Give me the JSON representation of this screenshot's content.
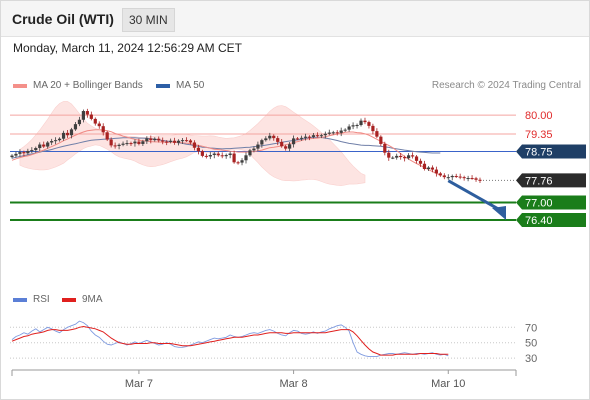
{
  "header": {
    "title": "Crude Oil (WTI)",
    "timeframe": "30 MIN"
  },
  "subheader": {
    "datetime": "Monday, March 11, 2024 12:56:29 AM CET"
  },
  "legend": {
    "main": [
      {
        "label": "MA 20 + Bollinger Bands",
        "color": "#f4908a"
      },
      {
        "label": "MA 50",
        "color": "#2d5fa6"
      }
    ],
    "rsi": [
      {
        "label": "RSI",
        "color": "#5b7fd6"
      },
      {
        "label": "9MA",
        "color": "#e0201e"
      }
    ]
  },
  "credit": "Research © 2024 Trading Central",
  "colors": {
    "resistance": "#f4a5a0",
    "support": "#1a7d1a",
    "current_line": "#3a63c9",
    "current_badge": "#1f3f66",
    "band_fill": "#fde0de",
    "arrow": "#2e5e9e",
    "candle_up": "#3f3f3f",
    "candle_down": "#a82222"
  },
  "chart_data": {
    "type": "candlestick",
    "xlim": [
      0,
      118
    ],
    "ylim": [
      75.85,
      80.45
    ],
    "x_ticks": [
      {
        "x": 32,
        "label": "Mar 7"
      },
      {
        "x": 71,
        "label": "Mar 8"
      },
      {
        "x": 110,
        "label": "Mar 10"
      }
    ],
    "levels": [
      {
        "value": "80.00",
        "kind": "resistance"
      },
      {
        "value": "79.35",
        "kind": "resistance"
      },
      {
        "value": "78.75",
        "kind": "current"
      },
      {
        "value": "77.76",
        "kind": "last"
      },
      {
        "value": "77.00",
        "kind": "support"
      },
      {
        "value": "76.40",
        "kind": "support"
      }
    ],
    "projection": {
      "from": {
        "x": 110,
        "y": 77.75
      },
      "to": {
        "x": 118,
        "y": 76.4
      }
    },
    "candle_close": [
      78.61,
      78.67,
      78.73,
      78.69,
      78.77,
      78.8,
      78.87,
      78.99,
      78.92,
      79.06,
      79.11,
      79.14,
      79.19,
      79.39,
      79.31,
      79.51,
      79.69,
      79.84,
      80.14,
      80.02,
      79.87,
      79.71,
      79.62,
      79.41,
      79.16,
      78.96,
      78.94,
      78.98,
      79.02,
      79.04,
      79.03,
      79.09,
      79.01,
      79.1,
      79.2,
      79.14,
      79.19,
      79.13,
      79.09,
      79.08,
      79.12,
      79.05,
      79.12,
      79.14,
      79.13,
      79.06,
      78.88,
      78.76,
      78.6,
      78.58,
      78.63,
      78.68,
      78.62,
      78.59,
      78.63,
      78.68,
      78.38,
      78.37,
      78.45,
      78.62,
      78.79,
      78.85,
      78.99,
      79.14,
      79.2,
      79.29,
      79.21,
      79.08,
      78.93,
      78.85,
      79.0,
      79.2,
      79.19,
      79.22,
      79.26,
      79.25,
      79.31,
      79.3,
      79.31,
      79.36,
      79.4,
      79.41,
      79.39,
      79.47,
      79.5,
      79.61,
      79.65,
      79.66,
      79.81,
      79.76,
      79.63,
      79.45,
      79.26,
      79.01,
      78.71,
      78.54,
      78.54,
      78.6,
      78.56,
      78.52,
      78.62,
      78.58,
      78.43,
      78.33,
      78.15,
      78.2,
      78.13,
      78.0,
      77.93,
      77.87,
      77.87,
      77.91,
      77.89,
      77.87,
      77.84,
      77.84,
      77.83,
      77.78,
      77.76
    ],
    "ma20": [
      78.45,
      78.5,
      78.54,
      78.58,
      78.6,
      78.64,
      78.69,
      78.75,
      78.8,
      78.86,
      78.92,
      78.98,
      79.05,
      79.12,
      79.18,
      79.25,
      79.31,
      79.37,
      79.42,
      79.46,
      79.48,
      79.5,
      79.5,
      79.49,
      79.46,
      79.43,
      79.37,
      79.33,
      79.28,
      79.24,
      79.2,
      79.17,
      79.14,
      79.12,
      79.11,
      79.09,
      79.08,
      79.08,
      79.07,
      79.07,
      79.07,
      79.07,
      79.06,
      79.05,
      79.04,
      79.02,
      78.99,
      78.96,
      78.93,
      78.9,
      78.86,
      78.83,
      78.82,
      78.8,
      78.78,
      78.76,
      78.75,
      78.73,
      78.73,
      78.73,
      78.74,
      78.75,
      78.77,
      78.8,
      78.84,
      78.88,
      78.9,
      78.92,
      78.95,
      78.98,
      79.02,
      79.06,
      79.09,
      79.13,
      79.17,
      79.19,
      79.2,
      79.21,
      79.23,
      79.26,
      79.29,
      79.32,
      79.35,
      79.38,
      79.41,
      79.42,
      79.42,
      79.4,
      79.39,
      79.36,
      79.31,
      79.24,
      79.17,
      79.1,
      79.03,
      78.96,
      78.88,
      78.78,
      78.68,
      78.58,
      78.49,
      78.41,
      78.34,
      78.27,
      78.2,
      78.13,
      78.06,
      78.0,
      77.94
    ],
    "bb_upper": [
      78.82,
      78.92,
      79.03,
      79.16,
      79.32,
      79.49,
      79.67,
      79.86,
      80.07,
      80.26,
      80.4,
      80.47,
      80.47,
      80.38,
      80.22,
      80.05,
      79.88,
      79.72,
      79.63,
      79.55,
      79.5,
      79.43,
      79.39,
      79.35,
      79.33,
      79.31,
      79.29,
      79.28,
      79.27,
      79.26,
      79.24,
      79.23,
      79.24,
      79.26,
      79.28,
      79.29,
      79.3,
      79.3,
      79.3,
      79.32,
      79.35,
      79.35,
      79.34,
      79.31,
      79.3,
      79.29,
      79.28,
      79.28,
      79.29,
      79.28,
      79.25,
      79.22,
      79.2,
      79.21,
      79.22,
      79.26,
      79.3,
      79.37,
      79.47,
      79.59,
      79.71,
      79.85,
      79.98,
      80.13,
      80.24,
      80.31,
      80.33,
      80.29,
      80.2,
      80.1,
      80.01,
      79.91,
      79.82,
      79.73,
      79.63,
      79.52,
      79.4,
      79.28,
      79.16,
      79.02,
      78.88,
      78.74,
      78.57,
      78.4,
      78.25,
      78.12,
      78.0,
      77.94
    ],
    "bb_lower": [
      78.28,
      78.22,
      78.18,
      78.15,
      78.13,
      78.12,
      78.12,
      78.13,
      78.17,
      78.22,
      78.28,
      78.35,
      78.46,
      78.56,
      78.67,
      78.76,
      78.85,
      78.91,
      78.94,
      78.98,
      78.96,
      78.9,
      78.83,
      78.74,
      78.64,
      78.57,
      78.53,
      78.5,
      78.47,
      78.42,
      78.35,
      78.29,
      78.25,
      78.23,
      78.24,
      78.27,
      78.3,
      78.35,
      78.4,
      78.45,
      78.49,
      78.52,
      78.57,
      78.64,
      78.72,
      78.75,
      78.74,
      78.72,
      78.72,
      78.72,
      78.73,
      78.76,
      78.79,
      78.81,
      78.83,
      78.83,
      78.81,
      78.76,
      78.65,
      78.51,
      78.37,
      78.22,
      78.09,
      77.97,
      77.88,
      77.82,
      77.77,
      77.75,
      77.75,
      77.74,
      77.75,
      77.77,
      77.78,
      77.8,
      77.79,
      77.77,
      77.72,
      77.67,
      77.63,
      77.61,
      77.59,
      77.58,
      77.6,
      77.63,
      77.63,
      77.64,
      77.66,
      77.68
    ],
    "ma50": [
      78.52,
      78.55,
      78.58,
      78.61,
      78.64,
      78.67,
      78.7,
      78.73,
      78.76,
      78.79,
      78.82,
      78.86,
      78.9,
      78.93,
      78.96,
      78.99,
      79.02,
      79.05,
      79.08,
      79.11,
      79.14,
      79.15,
      79.16,
      79.17,
      79.18,
      79.19,
      79.2,
      79.21,
      79.22,
      79.22,
      79.22,
      79.22,
      79.21,
      79.21,
      79.2,
      79.19,
      79.17,
      79.15,
      79.13,
      79.11,
      79.09,
      79.07,
      79.05,
      79.03,
      79.0,
      78.98,
      78.95,
      78.93,
      78.9,
      78.89,
      78.87,
      78.86,
      78.85,
      78.84,
      78.85,
      78.85,
      78.86,
      78.87,
      78.88,
      78.89,
      78.9,
      78.92,
      78.93,
      78.95,
      78.97,
      78.99,
      79.02,
      79.04,
      79.07,
      79.09,
      79.11,
      79.13,
      79.15,
      79.17,
      79.2,
      79.22,
      79.23,
      79.24,
      79.23,
      79.21,
      79.19,
      79.16,
      79.13,
      79.09,
      79.06,
      79.03,
      79.01,
      78.99,
      78.97,
      78.96,
      78.96,
      78.95,
      78.94,
      78.93,
      78.91,
      78.89,
      78.86,
      78.84,
      78.82,
      78.8,
      78.78,
      78.76,
      78.74,
      78.73,
      78.72,
      78.71,
      78.7,
      78.7,
      78.7
    ],
    "rsi_panel": {
      "ylim": [
        25,
        82
      ],
      "y_ticks": [
        "70",
        "50",
        "30"
      ],
      "rsi": [
        54,
        58,
        60,
        63,
        61,
        65,
        68,
        64,
        67,
        70,
        68,
        65,
        63,
        67,
        70,
        72,
        74,
        78,
        76,
        72,
        65,
        60,
        57,
        52,
        48,
        47,
        49,
        51,
        49,
        47,
        49,
        51,
        49,
        51,
        53,
        51,
        49,
        47,
        48,
        50,
        48,
        45,
        44,
        44,
        45,
        47,
        49,
        51,
        50,
        52,
        54,
        56,
        55,
        56,
        57,
        60,
        58,
        57,
        58,
        60,
        62,
        63,
        62,
        64,
        66,
        67,
        65,
        62,
        60,
        59,
        63,
        66,
        65,
        62,
        61,
        62,
        64,
        62,
        64,
        65,
        68,
        70,
        72,
        73,
        70,
        65,
        50,
        38,
        35,
        33,
        32,
        32,
        32,
        34,
        35,
        36,
        36,
        35,
        36,
        37,
        36,
        35,
        36,
        36,
        35,
        36,
        37,
        35,
        34,
        35,
        33
      ],
      "ma9": [
        52,
        54,
        56,
        58,
        59,
        61,
        62,
        63,
        64,
        66,
        67,
        67,
        66,
        66,
        66,
        67,
        68,
        70,
        71,
        70,
        69,
        68,
        66,
        64,
        60,
        56,
        53,
        50,
        49,
        48,
        48,
        49,
        49,
        49,
        49,
        50,
        50,
        49,
        49,
        49,
        49,
        48,
        47,
        46,
        46,
        46,
        47,
        48,
        49,
        50,
        51,
        52,
        53,
        54,
        55,
        56,
        57,
        57,
        57,
        58,
        59,
        60,
        60,
        61,
        62,
        63,
        63,
        63,
        63,
        62,
        62,
        63,
        63,
        63,
        63,
        63,
        63,
        63,
        63,
        63,
        64,
        65,
        66,
        67,
        67,
        67,
        64,
        59,
        53,
        47,
        42,
        38,
        36,
        34,
        34,
        34,
        34,
        35,
        35,
        35,
        35,
        35,
        35,
        36,
        36,
        36,
        36,
        36,
        35,
        35,
        35
      ]
    }
  }
}
